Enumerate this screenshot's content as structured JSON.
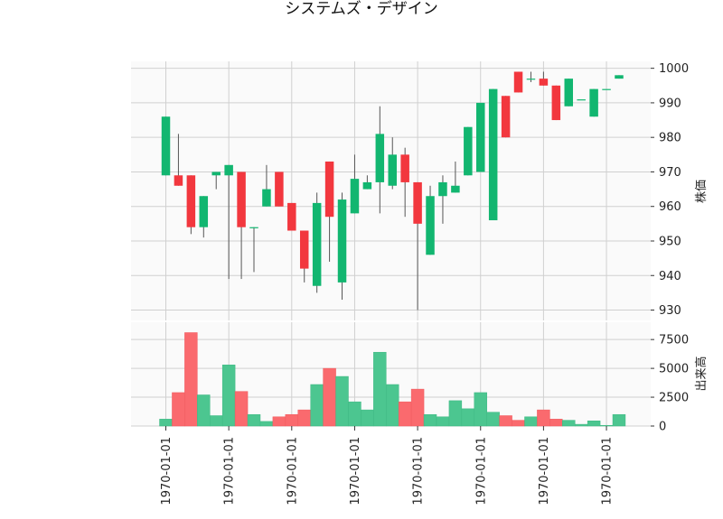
{
  "chart_data": {
    "type": "candlestick",
    "title": "システムズ・デザイン",
    "price_label": "株価",
    "volume_label": "出来高",
    "price_ylim": [
      927,
      1002
    ],
    "price_ticks": [
      930,
      940,
      950,
      960,
      970,
      980,
      990,
      1000
    ],
    "volume_ylim": [
      0,
      9000
    ],
    "volume_ticks": [
      0,
      2500,
      5000,
      7500
    ],
    "x_tick_labels": [
      "1970-01-01",
      "1970-01-01",
      "1970-01-01",
      "1970-01-01",
      "1970-01-01",
      "1970-01-01",
      "1970-01-01",
      "1970-01-01"
    ],
    "x_tick_index": [
      0,
      5,
      10,
      15,
      20,
      25,
      30,
      35
    ],
    "grid": true,
    "colors": {
      "up": "#12b670",
      "down": "#f2373e",
      "volume_up": "#4cc690",
      "volume_down": "#fa6a6e",
      "wick": "#555555",
      "panel_bg": "#fafafa",
      "grid": "#d0d0d0"
    },
    "candles": [
      {
        "open": 969,
        "high": 986,
        "low": 969,
        "close": 986,
        "volume": 600
      },
      {
        "open": 969,
        "high": 981,
        "low": 966,
        "close": 966,
        "volume": 2900
      },
      {
        "open": 969,
        "high": 969,
        "low": 952,
        "close": 954,
        "volume": 8100
      },
      {
        "open": 954,
        "high": 963,
        "low": 951,
        "close": 963,
        "volume": 2700
      },
      {
        "open": 969,
        "high": 970,
        "low": 965,
        "close": 970,
        "volume": 900
      },
      {
        "open": 969,
        "high": 972,
        "low": 939,
        "close": 972,
        "volume": 5300
      },
      {
        "open": 970,
        "high": 970,
        "low": 939,
        "close": 954,
        "volume": 3000
      },
      {
        "open": 954,
        "high": 954,
        "low": 941,
        "close": 954,
        "volume": 1000
      },
      {
        "open": 960,
        "high": 972,
        "low": 960,
        "close": 965,
        "volume": 400
      },
      {
        "open": 970,
        "high": 970,
        "low": 960,
        "close": 960,
        "volume": 800
      },
      {
        "open": 961,
        "high": 961,
        "low": 953,
        "close": 953,
        "volume": 1000
      },
      {
        "open": 953,
        "high": 953,
        "low": 938,
        "close": 942,
        "volume": 1400
      },
      {
        "open": 937,
        "high": 964,
        "low": 935,
        "close": 961,
        "volume": 3600
      },
      {
        "open": 973,
        "high": 973,
        "low": 944,
        "close": 957,
        "volume": 5000
      },
      {
        "open": 938,
        "high": 964,
        "low": 933,
        "close": 962,
        "volume": 4300
      },
      {
        "open": 958,
        "high": 975,
        "low": 958,
        "close": 968,
        "volume": 2100
      },
      {
        "open": 965,
        "high": 969,
        "low": 965,
        "close": 967,
        "volume": 1400
      },
      {
        "open": 967,
        "high": 989,
        "low": 958,
        "close": 981,
        "volume": 6400
      },
      {
        "open": 966,
        "high": 980,
        "low": 965,
        "close": 975,
        "volume": 3600
      },
      {
        "open": 975,
        "high": 977,
        "low": 957,
        "close": 967,
        "volume": 2100
      },
      {
        "open": 967,
        "high": 967,
        "low": 930,
        "close": 955,
        "volume": 3200
      },
      {
        "open": 946,
        "high": 966,
        "low": 946,
        "close": 963,
        "volume": 1000
      },
      {
        "open": 963,
        "high": 969,
        "low": 955,
        "close": 967,
        "volume": 800
      },
      {
        "open": 964,
        "high": 973,
        "low": 964,
        "close": 966,
        "volume": 2200
      },
      {
        "open": 969,
        "high": 983,
        "low": 969,
        "close": 983,
        "volume": 1500
      },
      {
        "open": 970,
        "high": 990,
        "low": 970,
        "close": 990,
        "volume": 2900
      },
      {
        "open": 956,
        "high": 994,
        "low": 956,
        "close": 994,
        "volume": 1200
      },
      {
        "open": 992,
        "high": 992,
        "low": 980,
        "close": 980,
        "volume": 900
      },
      {
        "open": 999,
        "high": 999,
        "low": 993,
        "close": 993,
        "volume": 500
      },
      {
        "open": 997,
        "high": 999,
        "low": 996,
        "close": 997,
        "volume": 800
      },
      {
        "open": 997,
        "high": 999,
        "low": 995,
        "close": 995,
        "volume": 1400
      },
      {
        "open": 995,
        "high": 995,
        "low": 985,
        "close": 985,
        "volume": 600
      },
      {
        "open": 989,
        "high": 997,
        "low": 989,
        "close": 997,
        "volume": 500
      },
      {
        "open": 991,
        "high": 991,
        "low": 991,
        "close": 991,
        "volume": 150
      },
      {
        "open": 986,
        "high": 994,
        "low": 986,
        "close": 994,
        "volume": 450
      },
      {
        "open": 994,
        "high": 994,
        "low": 994,
        "close": 994,
        "volume": 60
      },
      {
        "open": 997,
        "high": 998,
        "low": 997,
        "close": 998,
        "volume": 1000
      }
    ]
  }
}
